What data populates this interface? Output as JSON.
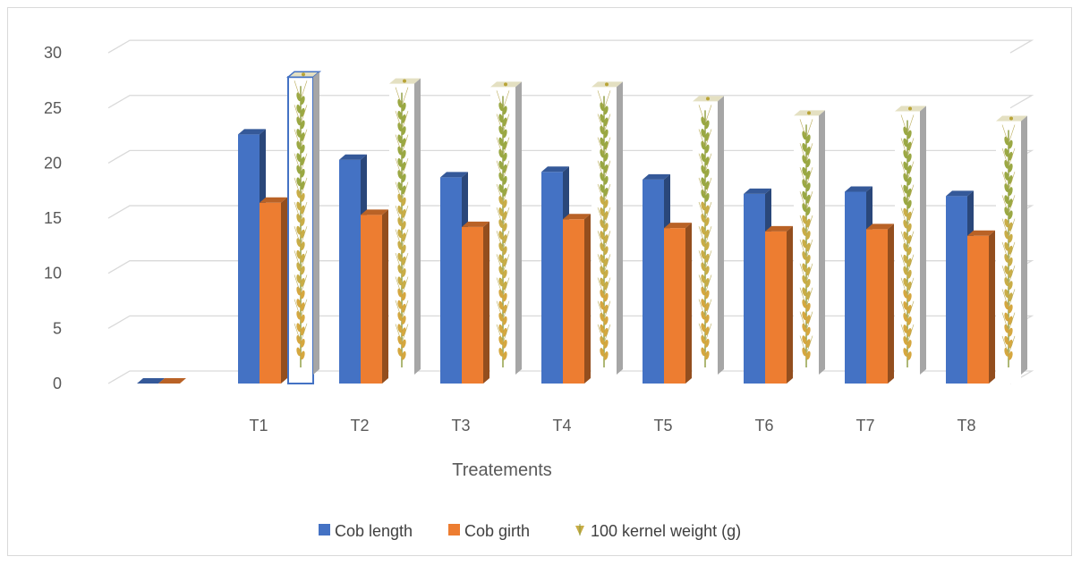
{
  "chart_data": {
    "type": "bar",
    "style": "3d-column",
    "categories": [
      "",
      "T1",
      "T2",
      "T3",
      "T4",
      "T5",
      "T6",
      "T7",
      "T8"
    ],
    "series": [
      {
        "name": "Cob length",
        "color": "#4472C4",
        "values": [
          0,
          22.6,
          20.3,
          18.7,
          19.2,
          18.5,
          17.2,
          17.4,
          17.0
        ]
      },
      {
        "name": "Cob girth",
        "color": "#ED7D31",
        "values": [
          0,
          16.4,
          15.3,
          14.2,
          14.9,
          14.1,
          13.8,
          14.0,
          13.4
        ]
      },
      {
        "name": "100 kernel weight (g)",
        "color": "#B5A642",
        "fill": "picture-wheat-ear",
        "values": [
          null,
          27.8,
          27.2,
          26.9,
          26.9,
          25.6,
          24.3,
          24.7,
          23.8
        ]
      }
    ],
    "xlabel": "Treatements",
    "ylabel": "",
    "ylim": [
      0,
      30
    ],
    "yticks": [
      0,
      5,
      10,
      15,
      20,
      25,
      30
    ],
    "grid": true,
    "legend": "bottom",
    "selected_bar": {
      "series": 2,
      "category": "T1"
    }
  }
}
